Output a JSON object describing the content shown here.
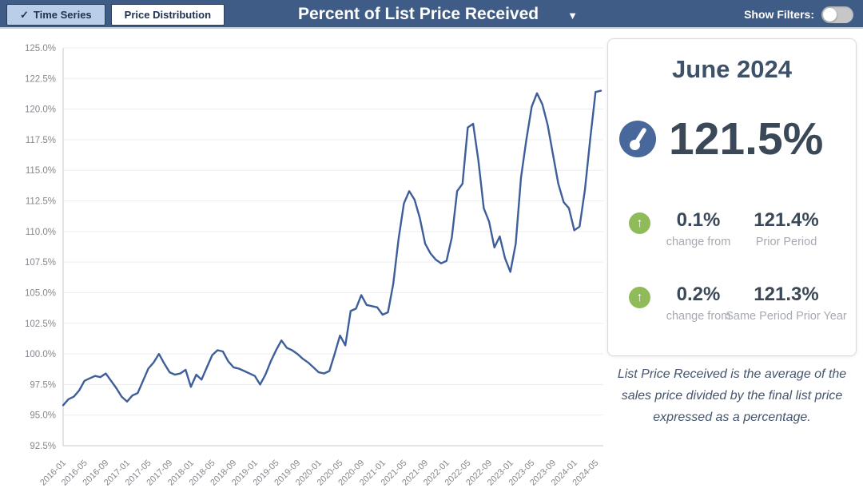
{
  "header": {
    "tabs": [
      {
        "label": "Time Series",
        "selected": true
      },
      {
        "label": "Price Distribution",
        "selected": false
      }
    ],
    "check_glyph": "✓",
    "title": "Percent of List Price Received",
    "dropdown_glyph": "▼",
    "show_filters_label": "Show Filters:",
    "show_filters_state": "off"
  },
  "summary_panel": {
    "period": "June 2024",
    "current_value": "121.5%",
    "stats": [
      {
        "change": "0.1%",
        "change_label": "change from",
        "value": "121.4%",
        "value_label": "Prior Period"
      },
      {
        "change": "0.2%",
        "change_label": "change from",
        "value": "121.3%",
        "value_label": "Same Period Prior Year"
      }
    ],
    "up_arrow_glyph": "↑"
  },
  "description": "List Price Received is the average of the sales price divided by the final list price expressed as a percentage.",
  "colors": {
    "header_bg": "#3f5c86",
    "tab_active_bg": "#b9cee8",
    "line": "#3e5e9a",
    "gauge_blue": "#48679b",
    "arrow_green": "#90bb59",
    "grid": "#ededf1",
    "axis": "#c6c8cf",
    "tick_text": "#85878c"
  },
  "chart_data": {
    "type": "line",
    "title": "Percent of List Price Received",
    "xlabel": "",
    "ylabel": "",
    "ylim": [
      92.5,
      125.0
    ],
    "grid": true,
    "legend": "none",
    "line_color": "#3e5e9a",
    "y_tick_labels": [
      "125.0%",
      "122.5%",
      "120.0%",
      "117.5%",
      "115.0%",
      "112.5%",
      "110.0%",
      "107.5%",
      "105.0%",
      "102.5%",
      "100.0%",
      "97.5%",
      "95.0%",
      "92.5%"
    ],
    "x_start": "2016-01",
    "x_end": "2024-06",
    "x_tick_every_months": 4,
    "x_tick_labels": [
      "2016-01",
      "2016-05",
      "2016-09",
      "2017-01",
      "2017-05",
      "2017-09",
      "2018-01",
      "2018-05",
      "2018-09",
      "2019-01",
      "2019-05",
      "2019-09",
      "2020-01",
      "2020-05",
      "2020-09",
      "2021-01",
      "2021-05",
      "2021-09",
      "2022-01",
      "2022-05",
      "2022-09",
      "2023-01",
      "2023-05",
      "2023-09",
      "2024-01",
      "2024-05"
    ],
    "values": [
      95.8,
      96.3,
      96.5,
      97.0,
      97.8,
      98.0,
      98.2,
      98.1,
      98.4,
      97.8,
      97.2,
      96.5,
      96.1,
      96.6,
      96.8,
      97.8,
      98.8,
      99.3,
      100.0,
      99.2,
      98.5,
      98.3,
      98.4,
      98.7,
      97.3,
      98.3,
      97.9,
      98.9,
      99.9,
      100.3,
      100.2,
      99.4,
      98.9,
      98.8,
      98.6,
      98.4,
      98.2,
      97.5,
      98.3,
      99.4,
      100.3,
      101.1,
      100.5,
      100.3,
      100.0,
      99.6,
      99.3,
      98.9,
      98.5,
      98.4,
      98.6,
      100.0,
      101.5,
      100.7,
      103.5,
      103.7,
      104.8,
      104.0,
      103.9,
      103.8,
      103.2,
      103.4,
      105.7,
      109.4,
      112.3,
      113.3,
      112.6,
      111.1,
      109.0,
      108.2,
      107.7,
      107.4,
      107.6,
      109.5,
      113.3,
      113.9,
      118.5,
      118.8,
      115.8,
      111.9,
      110.8,
      108.7,
      109.6,
      107.8,
      106.7,
      109.0,
      114.4,
      117.5,
      120.2,
      121.3,
      120.4,
      118.7,
      116.3,
      113.9,
      112.4,
      111.9,
      110.1,
      110.4,
      113.4,
      117.6,
      121.4,
      121.5
    ]
  }
}
